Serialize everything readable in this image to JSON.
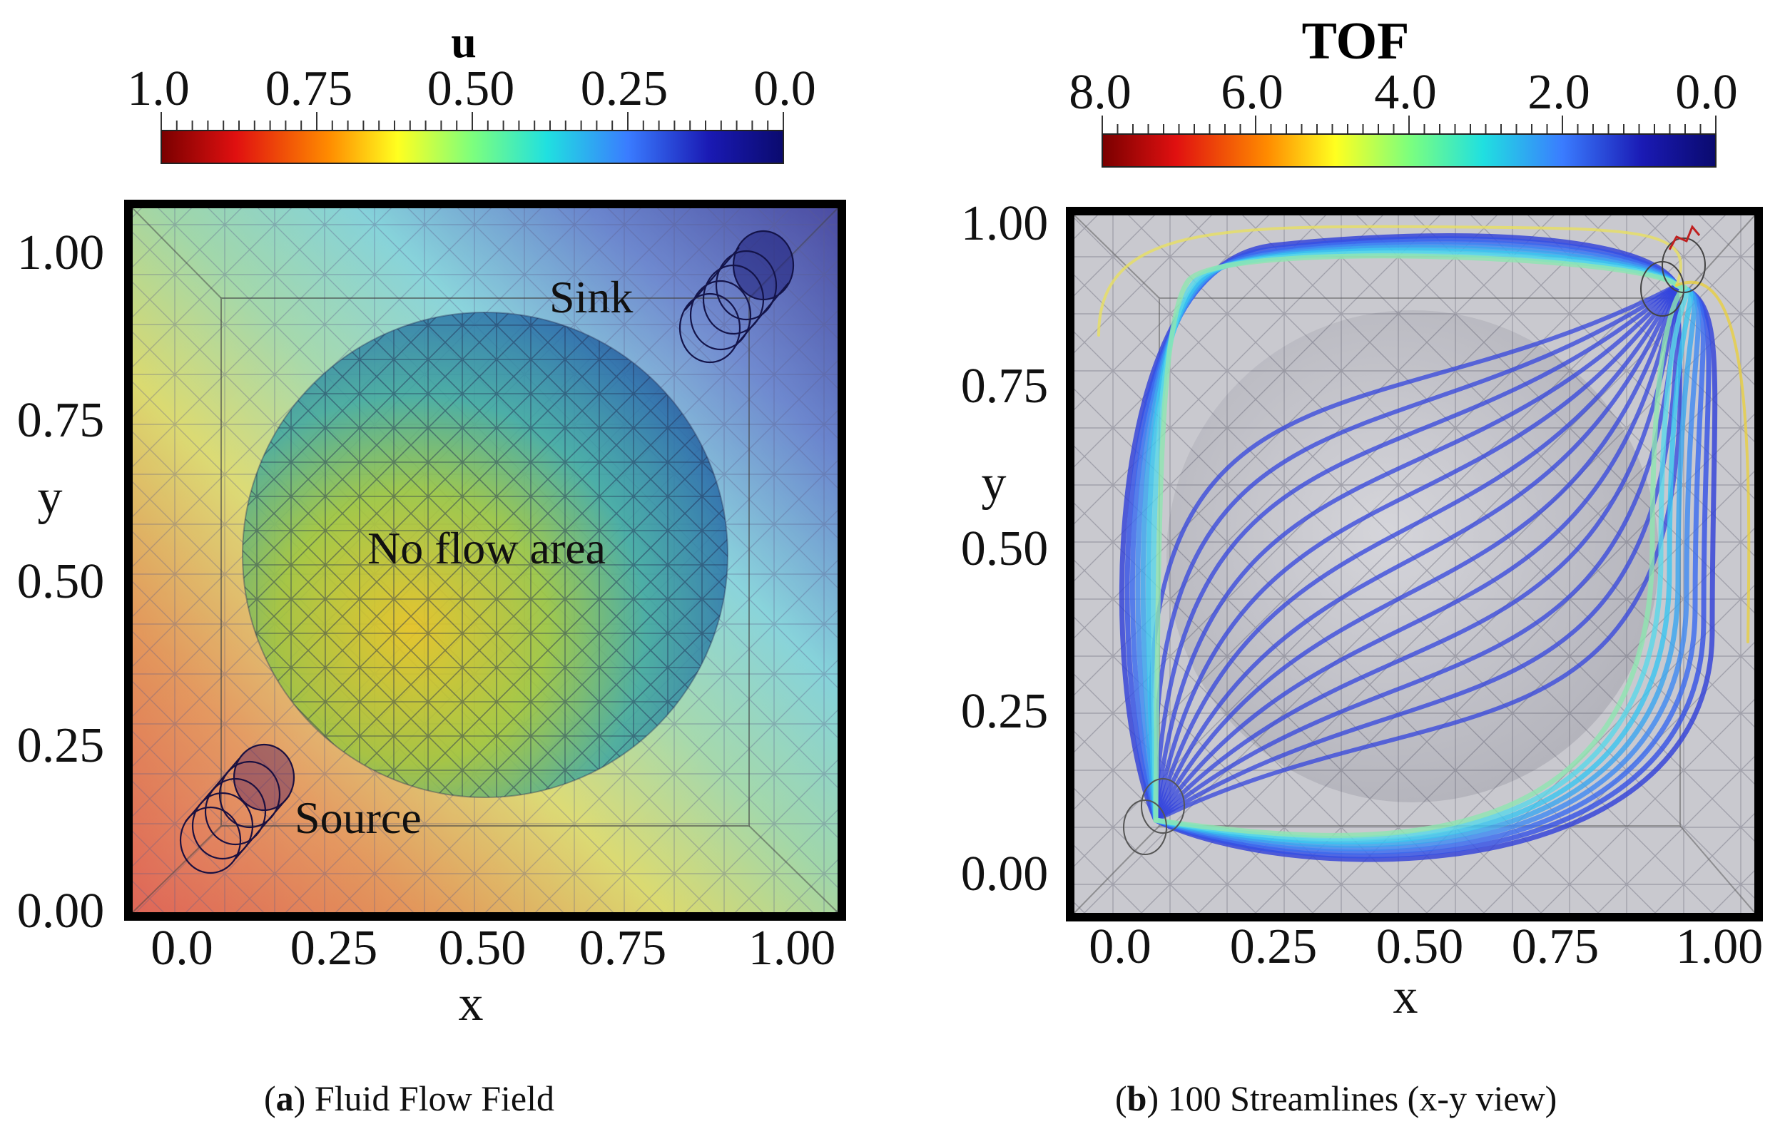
{
  "panel_a": {
    "colorbar": {
      "title": "u",
      "ticks": [
        "1.0",
        "0.75",
        "0.50",
        "0.25",
        "0.0"
      ],
      "colors": [
        "#7a0000",
        "#e01010",
        "#ff8c00",
        "#ffff20",
        "#7dff7d",
        "#20e0e0",
        "#3a7cff",
        "#1a1ab4",
        "#0a0a6e"
      ]
    },
    "y_label": "y",
    "y_ticks": [
      "1.00",
      "0.75",
      "0.50",
      "0.25",
      "0.00"
    ],
    "x_label": "x",
    "x_ticks": [
      "0.0",
      "0.25",
      "0.50",
      "0.75",
      "1.00"
    ],
    "annotations": {
      "sink": "Sink",
      "source": "Source",
      "no_flow": "No flow area"
    },
    "caption_label": "a",
    "caption_text": " Fluid Flow Field"
  },
  "panel_b": {
    "colorbar": {
      "title": "TOF",
      "ticks": [
        "8.0",
        "6.0",
        "4.0",
        "2.0",
        "0.0"
      ],
      "colors": [
        "#7a0000",
        "#e01010",
        "#ff8c00",
        "#ffff20",
        "#7dff7d",
        "#20e0e0",
        "#3a7cff",
        "#1a1ab4",
        "#0a0a6e"
      ]
    },
    "y_label": "y",
    "y_ticks": [
      "1.00",
      "0.75",
      "0.50",
      "0.25",
      "0.00"
    ],
    "x_label": "x",
    "x_ticks": [
      "0.0",
      "0.25",
      "0.50",
      "0.75",
      "1.00"
    ],
    "caption_label": "b",
    "caption_text": " 100 Streamlines (x-y view)"
  },
  "colors": {
    "frame": "#000000",
    "streamline_blue": "#3344dd",
    "streamline_cyan": "#39c6f0",
    "sphere_gray": "#b5b5bd"
  }
}
